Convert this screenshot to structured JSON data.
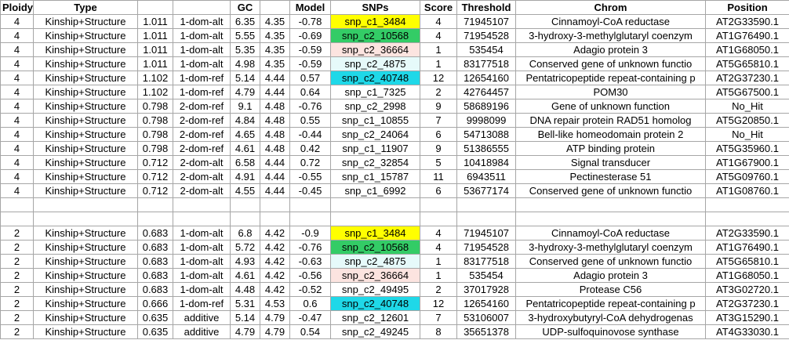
{
  "headers": [
    "Ploidy",
    "Type",
    "",
    "",
    "GC",
    "",
    "Model",
    "SNPs",
    "Score",
    "Threshold",
    "Chrom",
    "Position"
  ],
  "block1": [
    {
      "ploidy": "4",
      "type": "Kinship+Structure",
      "val1": "1.011",
      "dom": "1-dom-alt",
      "gc": "6.35",
      "val2": "4.35",
      "model": "-0.78",
      "snp": "snp_c1_3484",
      "hl": "yellow",
      "score": "4",
      "threshold": "71945107",
      "chrom": "Cinnamoyl-CoA reductase",
      "position": "AT2G33590.1"
    },
    {
      "ploidy": "4",
      "type": "Kinship+Structure",
      "val1": "1.011",
      "dom": "1-dom-alt",
      "gc": "5.55",
      "val2": "4.35",
      "model": "-0.69",
      "snp": "snp_c2_10568",
      "hl": "green",
      "score": "4",
      "threshold": "71954528",
      "chrom": "3-hydroxy-3-methylglutaryl coenzym",
      "position": "AT1G76490.1"
    },
    {
      "ploidy": "4",
      "type": "Kinship+Structure",
      "val1": "1.011",
      "dom": "1-dom-alt",
      "gc": "5.35",
      "val2": "4.35",
      "model": "-0.59",
      "snp": "snp_c2_36664",
      "hl": "pink",
      "score": "1",
      "threshold": "535454",
      "chrom": "Adagio protein 3",
      "position": "AT1G68050.1"
    },
    {
      "ploidy": "4",
      "type": "Kinship+Structure",
      "val1": "1.011",
      "dom": "1-dom-alt",
      "gc": "4.98",
      "val2": "4.35",
      "model": "-0.59",
      "snp": "snp_c2_4875",
      "hl": "lightcyan",
      "score": "1",
      "threshold": "83177518",
      "chrom": "Conserved gene of unknown functio",
      "position": "AT5G65810.1"
    },
    {
      "ploidy": "4",
      "type": "Kinship+Structure",
      "val1": "1.102",
      "dom": "1-dom-ref",
      "gc": "5.14",
      "val2": "4.44",
      "model": "0.57",
      "snp": "snp_c2_40748",
      "hl": "cyan",
      "score": "12",
      "threshold": "12654160",
      "chrom": "Pentatricopeptide repeat-containing p",
      "position": "AT2G37230.1"
    },
    {
      "ploidy": "4",
      "type": "Kinship+Structure",
      "val1": "1.102",
      "dom": "1-dom-ref",
      "gc": "4.79",
      "val2": "4.44",
      "model": "0.64",
      "snp": "snp_c1_7325",
      "hl": "",
      "score": "2",
      "threshold": "42764457",
      "chrom": "POM30",
      "position": "AT5G67500.1"
    },
    {
      "ploidy": "4",
      "type": "Kinship+Structure",
      "val1": "0.798",
      "dom": "2-dom-ref",
      "gc": "9.1",
      "val2": "4.48",
      "model": "-0.76",
      "snp": "snp_c2_2998",
      "hl": "",
      "score": "9",
      "threshold": "58689196",
      "chrom": "Gene of unknown function",
      "position": "No_Hit"
    },
    {
      "ploidy": "4",
      "type": "Kinship+Structure",
      "val1": "0.798",
      "dom": "2-dom-ref",
      "gc": "4.84",
      "val2": "4.48",
      "model": "0.55",
      "snp": "snp_c1_10855",
      "hl": "",
      "score": "7",
      "threshold": "9998099",
      "chrom": "DNA repair protein RAD51 homolog",
      "position": "AT5G20850.1"
    },
    {
      "ploidy": "4",
      "type": "Kinship+Structure",
      "val1": "0.798",
      "dom": "2-dom-ref",
      "gc": "4.65",
      "val2": "4.48",
      "model": "-0.44",
      "snp": "snp_c2_24064",
      "hl": "",
      "score": "6",
      "threshold": "54713088",
      "chrom": "Bell-like homeodomain protein 2",
      "position": "No_Hit"
    },
    {
      "ploidy": "4",
      "type": "Kinship+Structure",
      "val1": "0.798",
      "dom": "2-dom-ref",
      "gc": "4.61",
      "val2": "4.48",
      "model": "0.42",
      "snp": "snp_c1_11907",
      "hl": "",
      "score": "9",
      "threshold": "51386555",
      "chrom": "ATP binding protein",
      "position": "AT5G35960.1"
    },
    {
      "ploidy": "4",
      "type": "Kinship+Structure",
      "val1": "0.712",
      "dom": "2-dom-alt",
      "gc": "6.58",
      "val2": "4.44",
      "model": "0.72",
      "snp": "snp_c2_32854",
      "hl": "",
      "score": "5",
      "threshold": "10418984",
      "chrom": "Signal transducer",
      "position": "AT1G67900.1"
    },
    {
      "ploidy": "4",
      "type": "Kinship+Structure",
      "val1": "0.712",
      "dom": "2-dom-alt",
      "gc": "4.91",
      "val2": "4.44",
      "model": "-0.55",
      "snp": "snp_c1_15787",
      "hl": "",
      "score": "11",
      "threshold": "6943511",
      "chrom": "Pectinesterase 51",
      "position": "AT5G09760.1"
    },
    {
      "ploidy": "4",
      "type": "Kinship+Structure",
      "val1": "0.712",
      "dom": "2-dom-alt",
      "gc": "4.55",
      "val2": "4.44",
      "model": "-0.45",
      "snp": "snp_c1_6992",
      "hl": "",
      "score": "6",
      "threshold": "53677174",
      "chrom": "Conserved gene of unknown functio",
      "position": "AT1G08760.1"
    }
  ],
  "block2": [
    {
      "ploidy": "2",
      "type": "Kinship+Structure",
      "val1": "0.683",
      "dom": "1-dom-alt",
      "gc": "6.8",
      "val2": "4.42",
      "model": "-0.9",
      "snp": "snp_c1_3484",
      "hl": "yellow",
      "score": "4",
      "threshold": "71945107",
      "chrom": "Cinnamoyl-CoA reductase",
      "position": "AT2G33590.1"
    },
    {
      "ploidy": "2",
      "type": "Kinship+Structure",
      "val1": "0.683",
      "dom": "1-dom-alt",
      "gc": "5.72",
      "val2": "4.42",
      "model": "-0.76",
      "snp": "snp_c2_10568",
      "hl": "green",
      "score": "4",
      "threshold": "71954528",
      "chrom": "3-hydroxy-3-methylglutaryl coenzym",
      "position": "AT1G76490.1"
    },
    {
      "ploidy": "2",
      "type": "Kinship+Structure",
      "val1": "0.683",
      "dom": "1-dom-alt",
      "gc": "4.93",
      "val2": "4.42",
      "model": "-0.63",
      "snp": "snp_c2_4875",
      "hl": "lightcyan",
      "score": "1",
      "threshold": "83177518",
      "chrom": "Conserved gene of unknown functio",
      "position": "AT5G65810.1"
    },
    {
      "ploidy": "2",
      "type": "Kinship+Structure",
      "val1": "0.683",
      "dom": "1-dom-alt",
      "gc": "4.61",
      "val2": "4.42",
      "model": "-0.56",
      "snp": "snp_c2_36664",
      "hl": "pink",
      "score": "1",
      "threshold": "535454",
      "chrom": "Adagio protein 3",
      "position": "AT1G68050.1"
    },
    {
      "ploidy": "2",
      "type": "Kinship+Structure",
      "val1": "0.683",
      "dom": "1-dom-alt",
      "gc": "4.48",
      "val2": "4.42",
      "model": "-0.52",
      "snp": "snp_c2_49495",
      "hl": "",
      "score": "2",
      "threshold": "37017928",
      "chrom": "Protease C56",
      "position": "AT3G02720.1"
    },
    {
      "ploidy": "2",
      "type": "Kinship+Structure",
      "val1": "0.666",
      "dom": "1-dom-ref",
      "gc": "5.31",
      "val2": "4.53",
      "model": "0.6",
      "snp": "snp_c2_40748",
      "hl": "cyan",
      "score": "12",
      "threshold": "12654160",
      "chrom": "Pentatricopeptide repeat-containing p",
      "position": "AT2G37230.1"
    },
    {
      "ploidy": "2",
      "type": "Kinship+Structure",
      "val1": "0.635",
      "dom": "additive",
      "gc": "5.14",
      "val2": "4.79",
      "model": "-0.47",
      "snp": "snp_c2_12601",
      "hl": "",
      "score": "7",
      "threshold": "53106007",
      "chrom": "3-hydroxybutyryl-CoA dehydrogenas",
      "position": "AT3G15290.1"
    },
    {
      "ploidy": "2",
      "type": "Kinship+Structure",
      "val1": "0.635",
      "dom": "additive",
      "gc": "4.79",
      "val2": "4.79",
      "model": "0.54",
      "snp": "snp_c2_49245",
      "hl": "",
      "score": "8",
      "threshold": "35651378",
      "chrom": "UDP-sulfoquinovose synthase",
      "position": "AT4G33030.1"
    }
  ],
  "highlight_colors": {
    "yellow": "#ffff00",
    "green": "#33cc66",
    "pink": "#fce4e0",
    "lightcyan": "#e6fafa",
    "cyan": "#1fd8e8"
  }
}
